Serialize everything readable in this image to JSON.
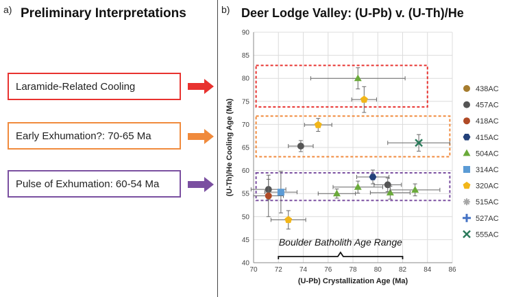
{
  "panel_a": {
    "letter": "a)",
    "title": "Preliminary Interpretations",
    "boxes": [
      {
        "label": "Laramide-Related Cooling",
        "color": "#e8322f"
      },
      {
        "label": "Early Exhumation?: 70-65 Ma",
        "color": "#f08a3c"
      },
      {
        "label": "Pulse of Exhumation: 60-54 Ma",
        "color": "#7a4fa0"
      }
    ]
  },
  "panel_b": {
    "letter": "b)",
    "title": "Deer Lodge Valley: (U-Pb) v. (U-Th)/He"
  },
  "chart_data": {
    "type": "scatter",
    "xlabel": "(U-Pb) Crystallization Age (Ma)",
    "ylabel": "(U-Th)/He Cooling Age (Ma)",
    "xlim": [
      70,
      86
    ],
    "ylim": [
      40,
      90
    ],
    "xticks": [
      70,
      72,
      74,
      76,
      78,
      80,
      82,
      84,
      86
    ],
    "yticks": [
      40,
      45,
      50,
      55,
      60,
      65,
      70,
      75,
      80,
      85,
      90
    ],
    "grid": true,
    "legend_position": "right",
    "annotation": "Boulder Batholith Age Range",
    "annotation_range": [
      72,
      82
    ],
    "interpretation_bands": [
      {
        "ymin": 73.8,
        "ymax": 82.8,
        "xmin": 70.2,
        "xmax": 84.0,
        "color": "#e8322f"
      },
      {
        "ymin": 63.0,
        "ymax": 71.8,
        "xmin": 70.2,
        "xmax": 85.8,
        "color": "#f08a3c"
      },
      {
        "ymin": 53.5,
        "ymax": 59.5,
        "xmin": 70.2,
        "xmax": 85.8,
        "color": "#7a4fa0"
      }
    ],
    "series": [
      {
        "name": "438AC",
        "marker": "circle",
        "color": "#a67c2e",
        "points": []
      },
      {
        "name": "457AC",
        "marker": "circle",
        "color": "#555555",
        "points": [
          {
            "x": 71.2,
            "y": 55.9,
            "xerr": 1.4,
            "yerr": 2.2
          },
          {
            "x": 73.8,
            "y": 65.3,
            "xerr": 1.0,
            "yerr": 1.2
          },
          {
            "x": 80.8,
            "y": 56.9,
            "xerr": 1.1,
            "yerr": 1.5
          }
        ]
      },
      {
        "name": "418AC",
        "marker": "circle",
        "color": "#b04a26",
        "points": [
          {
            "x": 71.2,
            "y": 54.5,
            "xerr": 1.2,
            "yerr": 4.5
          }
        ]
      },
      {
        "name": "415AC",
        "marker": "hexagon",
        "color": "#23417a",
        "points": [
          {
            "x": 79.6,
            "y": 58.6,
            "xerr": 1.3,
            "yerr": 1.5
          }
        ]
      },
      {
        "name": "504AC",
        "marker": "triangle",
        "color": "#6aaa3a",
        "points": [
          {
            "x": 78.4,
            "y": 80.0,
            "xerr": 3.8,
            "yerr": 2.3
          },
          {
            "x": 76.7,
            "y": 55.0,
            "xerr": 1.5,
            "yerr": 1.0
          },
          {
            "x": 78.4,
            "y": 56.4,
            "xerr": 2.0,
            "yerr": 1.3
          },
          {
            "x": 81.0,
            "y": 55.2,
            "xerr": 1.6,
            "yerr": 1.4
          },
          {
            "x": 83.0,
            "y": 55.8,
            "xerr": 2.0,
            "yerr": 1.3
          }
        ]
      },
      {
        "name": "314AC",
        "marker": "square",
        "color": "#5b9bd5",
        "points": [
          {
            "x": 72.2,
            "y": 55.3,
            "xerr": 1.3,
            "yerr": 4.5
          }
        ]
      },
      {
        "name": "320AC",
        "marker": "pentagon",
        "color": "#f2b619",
        "points": [
          {
            "x": 78.9,
            "y": 75.4,
            "xerr": 1.0,
            "yerr": 2.8
          },
          {
            "x": 75.2,
            "y": 69.9,
            "xerr": 1.1,
            "yerr": 1.4
          },
          {
            "x": 72.8,
            "y": 49.3,
            "xerr": 1.4,
            "yerr": 2.0
          }
        ]
      },
      {
        "name": "515AC",
        "marker": "asterisk",
        "color": "#a6a6a6",
        "points": []
      },
      {
        "name": "527AC",
        "marker": "plus",
        "color": "#4472c4",
        "points": []
      },
      {
        "name": "555AC",
        "marker": "x",
        "color": "#2a7a5a",
        "points": [
          {
            "x": 83.3,
            "y": 66.0,
            "xerr": 2.5,
            "yerr": 1.8
          }
        ]
      }
    ]
  }
}
